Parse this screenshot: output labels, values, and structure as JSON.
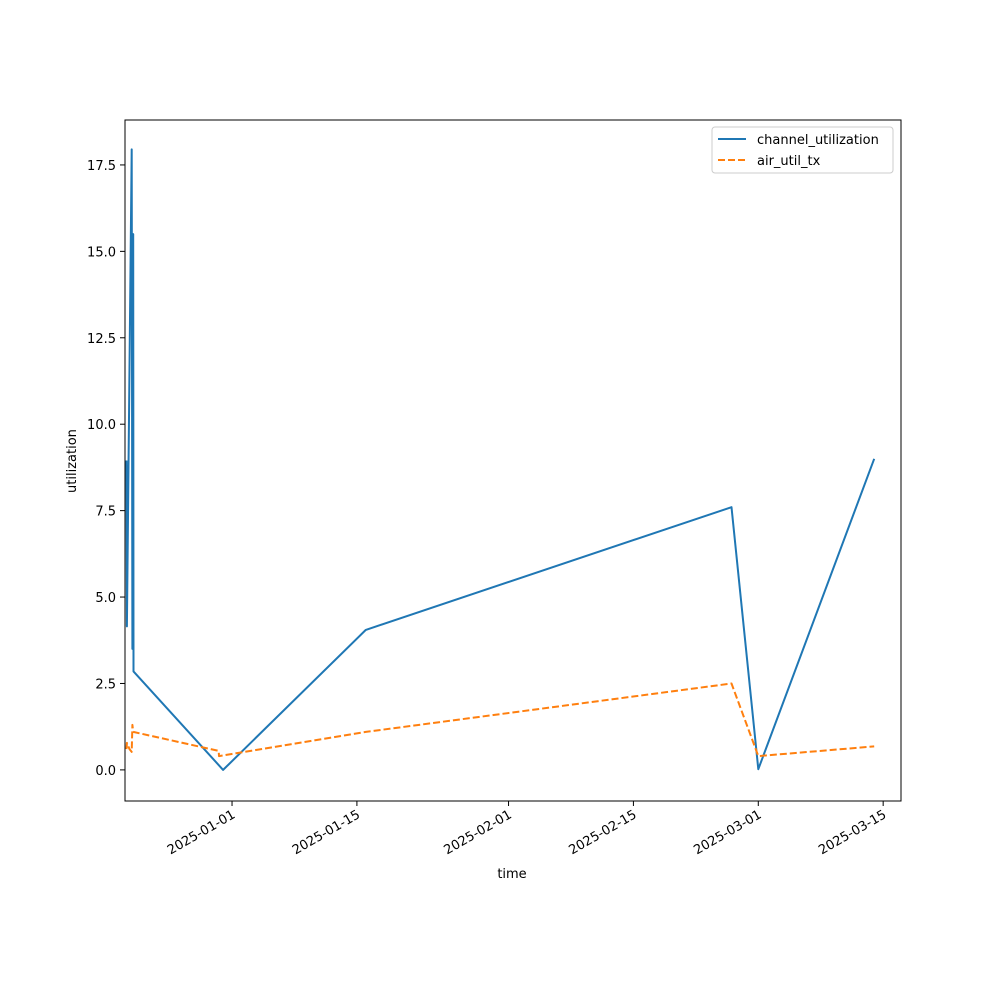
{
  "chart_data": {
    "type": "line",
    "title": "",
    "xlabel": "time",
    "ylabel": "utilization",
    "x_axis_type": "date",
    "xlim": [
      "2024-12-20",
      "2025-03-17"
    ],
    "ylim": [
      -0.9,
      18.8
    ],
    "x_ticks": [
      "2025-01-01",
      "2025-01-15",
      "2025-02-01",
      "2025-02-15",
      "2025-03-01",
      "2025-03-15"
    ],
    "y_ticks": [
      0.0,
      2.5,
      5.0,
      7.5,
      10.0,
      12.5,
      15.0,
      17.5
    ],
    "y_tick_labels": [
      "0.0",
      "2.5",
      "5.0",
      "7.5",
      "10.0",
      "12.5",
      "15.0",
      "17.5"
    ],
    "grid": false,
    "legend_position": "top-right",
    "series": [
      {
        "name": "channel_utilization",
        "color": "#1f77b4",
        "dash": "solid",
        "points": [
          {
            "x": "2024-12-20T04:00",
            "y": 8.95
          },
          {
            "x": "2024-12-20T05:00",
            "y": 4.15
          },
          {
            "x": "2024-12-20T18:00",
            "y": 17.95
          },
          {
            "x": "2024-12-20T20:00",
            "y": 3.5
          },
          {
            "x": "2024-12-20T22:00",
            "y": 15.5
          },
          {
            "x": "2024-12-20T23:00",
            "y": 2.85
          },
          {
            "x": "2024-12-31T00:00",
            "y": 0.0
          },
          {
            "x": "2025-01-16T00:00",
            "y": 4.05
          },
          {
            "x": "2025-02-26T00:00",
            "y": 7.6
          },
          {
            "x": "2025-03-01T00:00",
            "y": 0.02
          },
          {
            "x": "2025-03-14T00:00",
            "y": 9.0
          }
        ]
      },
      {
        "name": "air_util_tx",
        "color": "#ff7f0e",
        "dash": "dashed",
        "points": [
          {
            "x": "2024-12-20T04:00",
            "y": 0.6
          },
          {
            "x": "2024-12-20T05:00",
            "y": 0.78
          },
          {
            "x": "2024-12-20T12:00",
            "y": 0.6
          },
          {
            "x": "2024-12-20T18:00",
            "y": 0.52
          },
          {
            "x": "2024-12-20T20:00",
            "y": 1.3
          },
          {
            "x": "2024-12-20T22:00",
            "y": 1.1
          },
          {
            "x": "2024-12-30T12:00",
            "y": 0.55
          },
          {
            "x": "2024-12-30T13:00",
            "y": 0.4
          },
          {
            "x": "2025-01-16T00:00",
            "y": 1.1
          },
          {
            "x": "2025-02-26T00:00",
            "y": 2.5
          },
          {
            "x": "2025-03-01T00:00",
            "y": 0.4
          },
          {
            "x": "2025-03-14T00:00",
            "y": 0.68
          }
        ]
      }
    ]
  }
}
